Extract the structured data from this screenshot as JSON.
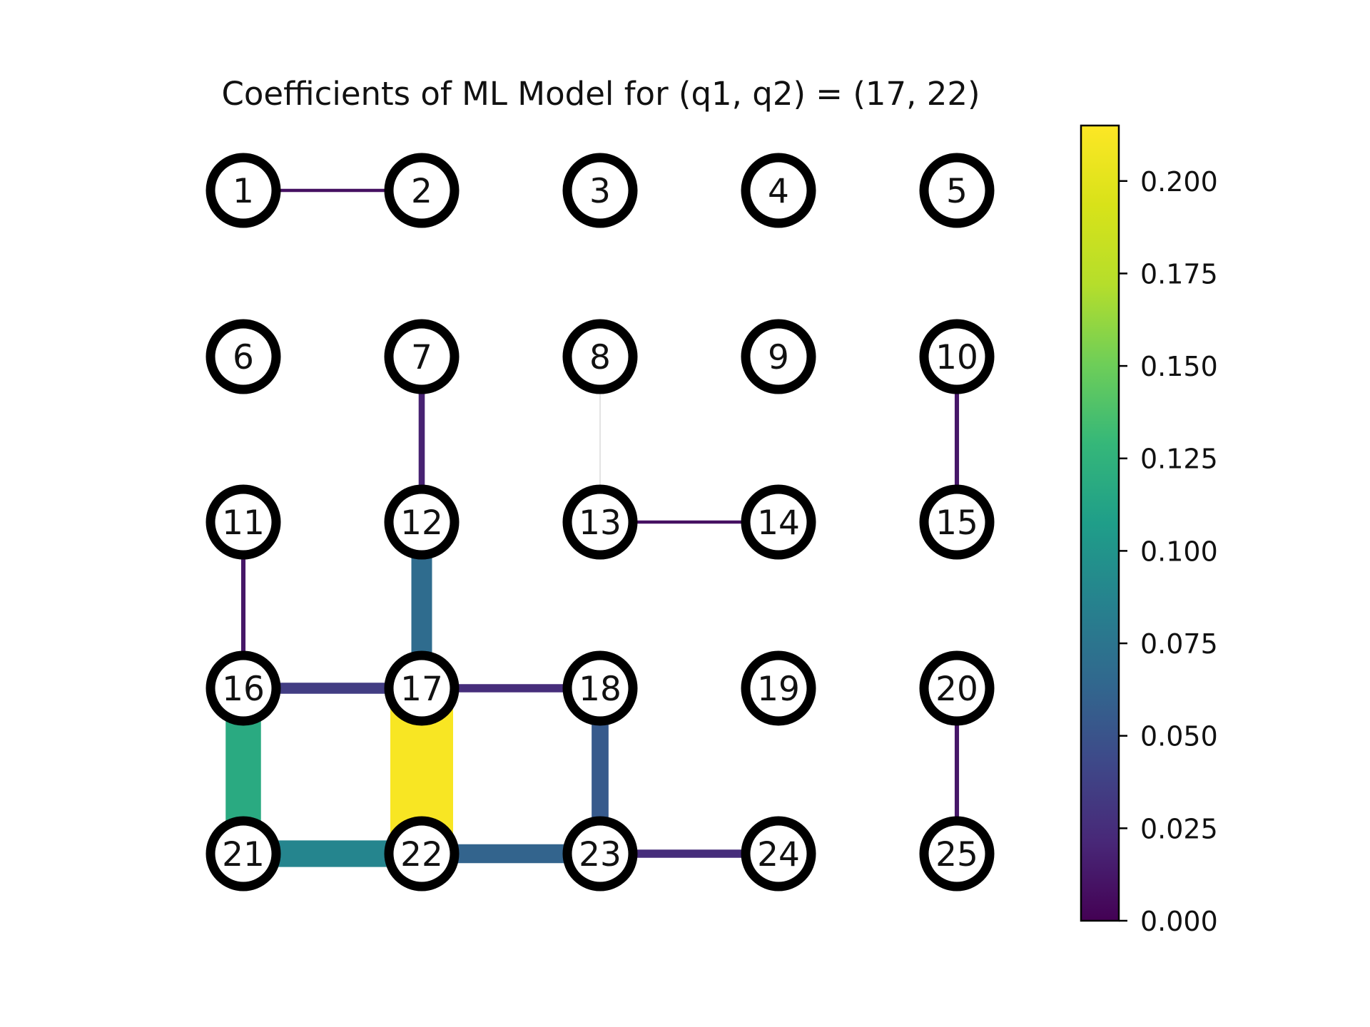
{
  "title": "Coefficients of ML Model for (q1, q2) = (17, 22)",
  "colorbar": {
    "colormap": "viridis",
    "min": 0.0,
    "max": 0.215,
    "ticks": [
      {
        "value": 0.0,
        "label": "0.000"
      },
      {
        "value": 0.025,
        "label": "0.025"
      },
      {
        "value": 0.05,
        "label": "0.050"
      },
      {
        "value": 0.075,
        "label": "0.075"
      },
      {
        "value": 0.1,
        "label": "0.100"
      },
      {
        "value": 0.125,
        "label": "0.125"
      },
      {
        "value": 0.15,
        "label": "0.150"
      },
      {
        "value": 0.175,
        "label": "0.175"
      },
      {
        "value": 0.2,
        "label": "0.200"
      }
    ]
  },
  "grid": {
    "rows": 5,
    "cols": 5
  },
  "nodes": [
    {
      "id": 1,
      "label": "1"
    },
    {
      "id": 2,
      "label": "2"
    },
    {
      "id": 3,
      "label": "3"
    },
    {
      "id": 4,
      "label": "4"
    },
    {
      "id": 5,
      "label": "5"
    },
    {
      "id": 6,
      "label": "6"
    },
    {
      "id": 7,
      "label": "7"
    },
    {
      "id": 8,
      "label": "8"
    },
    {
      "id": 9,
      "label": "9"
    },
    {
      "id": 10,
      "label": "10"
    },
    {
      "id": 11,
      "label": "11"
    },
    {
      "id": 12,
      "label": "12"
    },
    {
      "id": 13,
      "label": "13"
    },
    {
      "id": 14,
      "label": "14"
    },
    {
      "id": 15,
      "label": "15"
    },
    {
      "id": 16,
      "label": "16"
    },
    {
      "id": 17,
      "label": "17"
    },
    {
      "id": 18,
      "label": "18"
    },
    {
      "id": 19,
      "label": "19"
    },
    {
      "id": 20,
      "label": "20"
    },
    {
      "id": 21,
      "label": "21"
    },
    {
      "id": 22,
      "label": "22"
    },
    {
      "id": 23,
      "label": "23"
    },
    {
      "id": 24,
      "label": "24"
    },
    {
      "id": 25,
      "label": "25"
    }
  ],
  "edges": [
    {
      "from": 1,
      "to": 2,
      "value": 0.008
    },
    {
      "from": 7,
      "to": 12,
      "value": 0.018
    },
    {
      "from": 8,
      "to": 13,
      "value": 0.001
    },
    {
      "from": 13,
      "to": 14,
      "value": 0.008
    },
    {
      "from": 10,
      "to": 15,
      "value": 0.012
    },
    {
      "from": 11,
      "to": 16,
      "value": 0.012
    },
    {
      "from": 12,
      "to": 17,
      "value": 0.068
    },
    {
      "from": 16,
      "to": 17,
      "value": 0.035
    },
    {
      "from": 17,
      "to": 18,
      "value": 0.025
    },
    {
      "from": 16,
      "to": 21,
      "value": 0.118
    },
    {
      "from": 17,
      "to": 22,
      "value": 0.212
    },
    {
      "from": 18,
      "to": 23,
      "value": 0.055
    },
    {
      "from": 20,
      "to": 25,
      "value": 0.012
    },
    {
      "from": 21,
      "to": 22,
      "value": 0.088
    },
    {
      "from": 22,
      "to": 23,
      "value": 0.062
    },
    {
      "from": 23,
      "to": 24,
      "value": 0.025
    }
  ]
}
